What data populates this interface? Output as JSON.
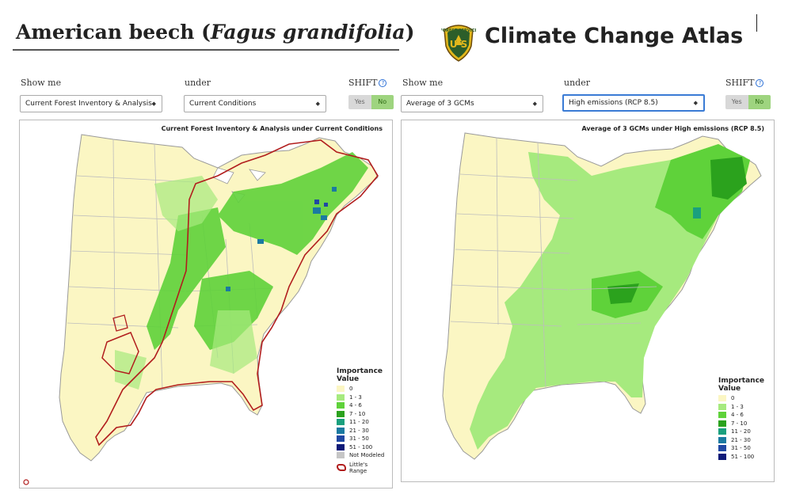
{
  "header": {
    "species_common": "American beech",
    "species_latin": "Fagus grandifolia",
    "atlas_title": "Climate Change Atlas",
    "logo_icon": "usfs-shield-logo",
    "logo_text": "U S"
  },
  "left": {
    "show_me_label": "Show me",
    "under_label": "under",
    "shift_label": "SHIFT",
    "show_me_value": "Current Forest Inventory & Analysis",
    "under_value": "Current Conditions",
    "toggle_yes": "Yes",
    "toggle_no": "No",
    "map_title": "Current Forest Inventory & Analysis under Current Conditions"
  },
  "right": {
    "show_me_label": "Show me",
    "under_label": "under",
    "shift_label": "SHIFT",
    "show_me_value": "Average of 3 GCMs",
    "under_value": "High emissions (RCP 8.5)",
    "toggle_yes": "Yes",
    "toggle_no": "No",
    "map_title": "Average of 3 GCMs under High emissions (RCP 8.5)"
  },
  "legend": {
    "title": "Importance Value",
    "classes": [
      {
        "label": "0",
        "color": "#fbf6c3"
      },
      {
        "label": "1 - 3",
        "color": "#a6ea7e"
      },
      {
        "label": "4 - 6",
        "color": "#5fd23a"
      },
      {
        "label": "7 - 10",
        "color": "#2ba21d"
      },
      {
        "label": "11 - 20",
        "color": "#1aa07e"
      },
      {
        "label": "21 - 30",
        "color": "#1b7aa1"
      },
      {
        "label": "31 - 50",
        "color": "#2048a3"
      },
      {
        "label": "51 - 100",
        "color": "#0e1a78"
      }
    ],
    "not_modeled": {
      "label": "Not Modeled",
      "color": "#c6c6c6"
    },
    "range_label": "Little's Range",
    "range_color": "#b11d1d"
  },
  "colors": {
    "accent": "#3a7bd5",
    "toggle_on": "#9ed47f"
  }
}
